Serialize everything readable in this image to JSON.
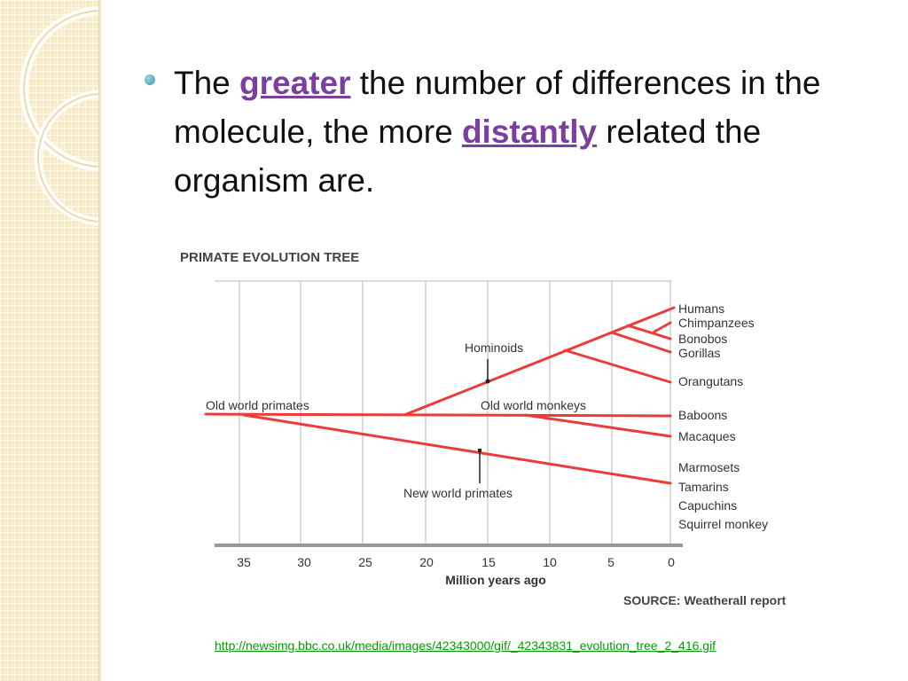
{
  "slide": {
    "bullet": {
      "prefix": "The ",
      "emphasis1": "greater",
      "middle": " the number of differences in the molecule, the more ",
      "emphasis2": "distantly",
      "suffix": " related the organism are."
    },
    "source_url": "http://newsimg.bbc.co.uk/media/images/42343000/gif/_42343831_evolution_tree_2_416.gif"
  },
  "colors": {
    "branch": "#ec3b3b",
    "grid": "#cfcfcf",
    "emphasis": "#7b3fa0",
    "link": "#00a000",
    "bullet": "#3b98ab"
  },
  "diagram": {
    "title": "PRIMATE EVOLUTION TREE",
    "xlabel": "Million years ago",
    "ticks": [
      "35",
      "30",
      "25",
      "20",
      "15",
      "10",
      "5",
      "0"
    ],
    "source": "SOURCE: Weatherall report",
    "group_labels": {
      "old_world_primates": "Old world primates",
      "hominoids": "Hominoids",
      "old_world_monkeys": "Old world monkeys",
      "new_world_primates": "New world primates"
    },
    "species": [
      "Humans",
      "Chimpanzees",
      "Bonobos",
      "Gorillas",
      "Orangutans",
      "Baboons",
      "Macaques",
      "Marmosets",
      "Tamarins",
      "Capuchins",
      "Squirrel monkey"
    ]
  }
}
